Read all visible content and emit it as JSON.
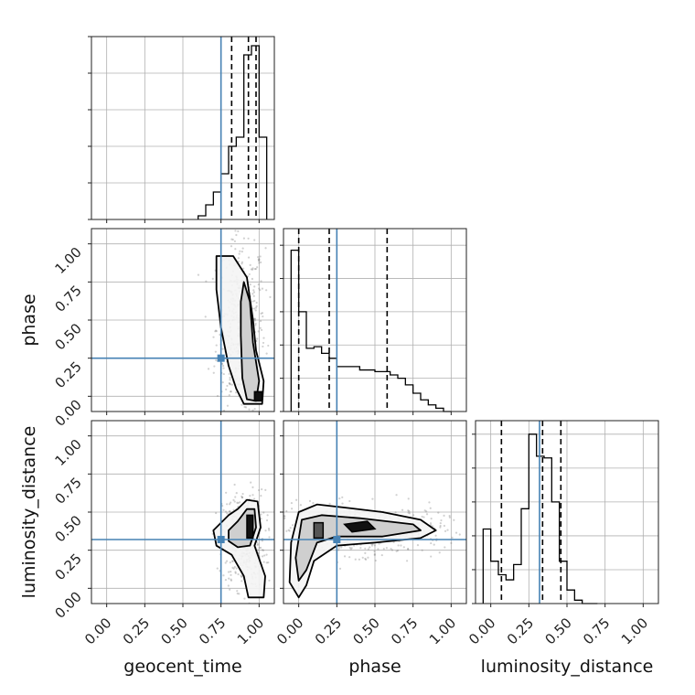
{
  "chart_data": {
    "type": "corner",
    "parameters": [
      "geocent_time",
      "phase",
      "luminosity_distance"
    ],
    "axis_range": [
      -0.1,
      1.1
    ],
    "ticks": [
      0.0,
      0.25,
      0.5,
      0.75,
      1.0
    ],
    "tick_labels": [
      "0.00",
      "0.25",
      "0.50",
      "0.75",
      "1.00"
    ],
    "grid": true,
    "colors": {
      "truth": "#4682b4",
      "hist": "#000000",
      "samples": "#7a7a7a",
      "grid": "#b0b0b0"
    },
    "truths": {
      "geocent_time": 0.75,
      "phase": 0.25,
      "luminosity_distance": 0.32
    },
    "quantiles": {
      "geocent_time": [
        0.82,
        0.93,
        0.98
      ],
      "phase": [
        0.0,
        0.2,
        0.58
      ],
      "luminosity_distance": [
        0.07,
        0.34,
        0.46
      ]
    },
    "histograms": {
      "geocent_time": {
        "edges": [
          0.6,
          0.65,
          0.7,
          0.75,
          0.8,
          0.85,
          0.9,
          0.95,
          1.0,
          1.05
        ],
        "counts": [
          0.02,
          0.08,
          0.15,
          0.25,
          0.4,
          0.45,
          0.9,
          0.95,
          0.45
        ],
        "ymax": 1.0
      },
      "phase": {
        "edges": [
          -0.05,
          0.0,
          0.05,
          0.1,
          0.15,
          0.2,
          0.25,
          0.3,
          0.35,
          0.4,
          0.45,
          0.5,
          0.55,
          0.6,
          0.65,
          0.7,
          0.75,
          0.8,
          0.85,
          0.9,
          0.95,
          1.0
        ],
        "counts": [
          0.97,
          0.6,
          0.38,
          0.39,
          0.35,
          0.32,
          0.27,
          0.27,
          0.27,
          0.25,
          0.25,
          0.24,
          0.24,
          0.22,
          0.2,
          0.16,
          0.11,
          0.07,
          0.04,
          0.02,
          0.0
        ],
        "ymax": 1.1
      },
      "luminosity_distance": {
        "edges": [
          -0.05,
          0.0,
          0.05,
          0.1,
          0.15,
          0.2,
          0.25,
          0.3,
          0.35,
          0.4,
          0.45,
          0.5,
          0.55,
          0.6,
          0.65,
          0.7
        ],
        "counts": [
          0.44,
          0.25,
          0.17,
          0.14,
          0.23,
          0.56,
          1.0,
          0.87,
          0.86,
          0.6,
          0.25,
          0.08,
          0.02,
          0.0,
          0.0
        ],
        "ymax": 1.08
      }
    },
    "contour_panels": [
      {
        "x": "geocent_time",
        "y": "phase",
        "outer": [
          [
            0.72,
            0.92
          ],
          [
            0.83,
            0.92
          ],
          [
            0.92,
            0.78
          ],
          [
            0.96,
            0.5
          ],
          [
            0.98,
            0.3
          ],
          [
            1.03,
            0.1
          ],
          [
            1.02,
            -0.05
          ],
          [
            0.9,
            -0.05
          ],
          [
            0.85,
            0.05
          ],
          [
            0.8,
            0.2
          ],
          [
            0.75,
            0.45
          ],
          [
            0.72,
            0.7
          ]
        ],
        "inner": [
          [
            0.9,
            0.75
          ],
          [
            0.94,
            0.62
          ],
          [
            0.96,
            0.35
          ],
          [
            1.0,
            0.1
          ],
          [
            0.98,
            -0.03
          ],
          [
            0.92,
            -0.02
          ],
          [
            0.89,
            0.12
          ],
          [
            0.88,
            0.4
          ],
          [
            0.88,
            0.62
          ]
        ],
        "core": [
          [
            0.97,
            0.03
          ],
          [
            1.02,
            0.03
          ],
          [
            1.02,
            -0.03
          ],
          [
            0.97,
            -0.03
          ]
        ],
        "cloud": {
          "cx": 0.88,
          "cy": 0.45,
          "sx": 0.08,
          "sy": 0.3,
          "n": 500
        }
      },
      {
        "x": "geocent_time",
        "y": "luminosity_distance",
        "outer": [
          [
            0.7,
            0.38
          ],
          [
            0.8,
            0.48
          ],
          [
            0.86,
            0.52
          ],
          [
            0.92,
            0.58
          ],
          [
            0.99,
            0.57
          ],
          [
            1.01,
            0.4
          ],
          [
            0.97,
            0.28
          ],
          [
            1.04,
            0.08
          ],
          [
            1.03,
            -0.06
          ],
          [
            0.93,
            -0.06
          ],
          [
            0.9,
            0.08
          ],
          [
            0.82,
            0.22
          ],
          [
            0.72,
            0.28
          ]
        ],
        "inner": [
          [
            0.8,
            0.38
          ],
          [
            0.86,
            0.44
          ],
          [
            0.92,
            0.52
          ],
          [
            0.97,
            0.52
          ],
          [
            0.98,
            0.4
          ],
          [
            0.94,
            0.28
          ],
          [
            0.86,
            0.27
          ],
          [
            0.8,
            0.31
          ]
        ],
        "core": [
          [
            0.92,
            0.48
          ],
          [
            0.96,
            0.48
          ],
          [
            0.96,
            0.33
          ],
          [
            0.92,
            0.33
          ]
        ],
        "cloud": {
          "cx": 0.9,
          "cy": 0.32,
          "sx": 0.07,
          "sy": 0.16,
          "n": 450
        }
      },
      {
        "x": "phase",
        "y": "luminosity_distance",
        "outer": [
          [
            0.0,
            0.5
          ],
          [
            0.12,
            0.55
          ],
          [
            0.3,
            0.53
          ],
          [
            0.55,
            0.5
          ],
          [
            0.8,
            0.45
          ],
          [
            0.9,
            0.38
          ],
          [
            0.8,
            0.33
          ],
          [
            0.5,
            0.3
          ],
          [
            0.25,
            0.28
          ],
          [
            0.1,
            0.18
          ],
          [
            0.05,
            0.02
          ],
          [
            0.0,
            -0.06
          ],
          [
            -0.06,
            0.04
          ],
          [
            -0.05,
            0.3
          ]
        ],
        "inner": [
          [
            0.02,
            0.45
          ],
          [
            0.15,
            0.48
          ],
          [
            0.4,
            0.46
          ],
          [
            0.75,
            0.42
          ],
          [
            0.8,
            0.38
          ],
          [
            0.55,
            0.34
          ],
          [
            0.25,
            0.34
          ],
          [
            0.12,
            0.3
          ],
          [
            0.05,
            0.12
          ],
          [
            0.0,
            0.05
          ],
          [
            -0.02,
            0.2
          ]
        ],
        "core": [
          [
            0.3,
            0.42
          ],
          [
            0.45,
            0.44
          ],
          [
            0.5,
            0.39
          ],
          [
            0.35,
            0.37
          ]
        ],
        "core2": [
          [
            0.1,
            0.43
          ],
          [
            0.16,
            0.43
          ],
          [
            0.16,
            0.33
          ],
          [
            0.1,
            0.33
          ]
        ],
        "cloud": {
          "cx": 0.4,
          "cy": 0.38,
          "sx": 0.28,
          "sy": 0.08,
          "n": 550
        }
      }
    ]
  }
}
